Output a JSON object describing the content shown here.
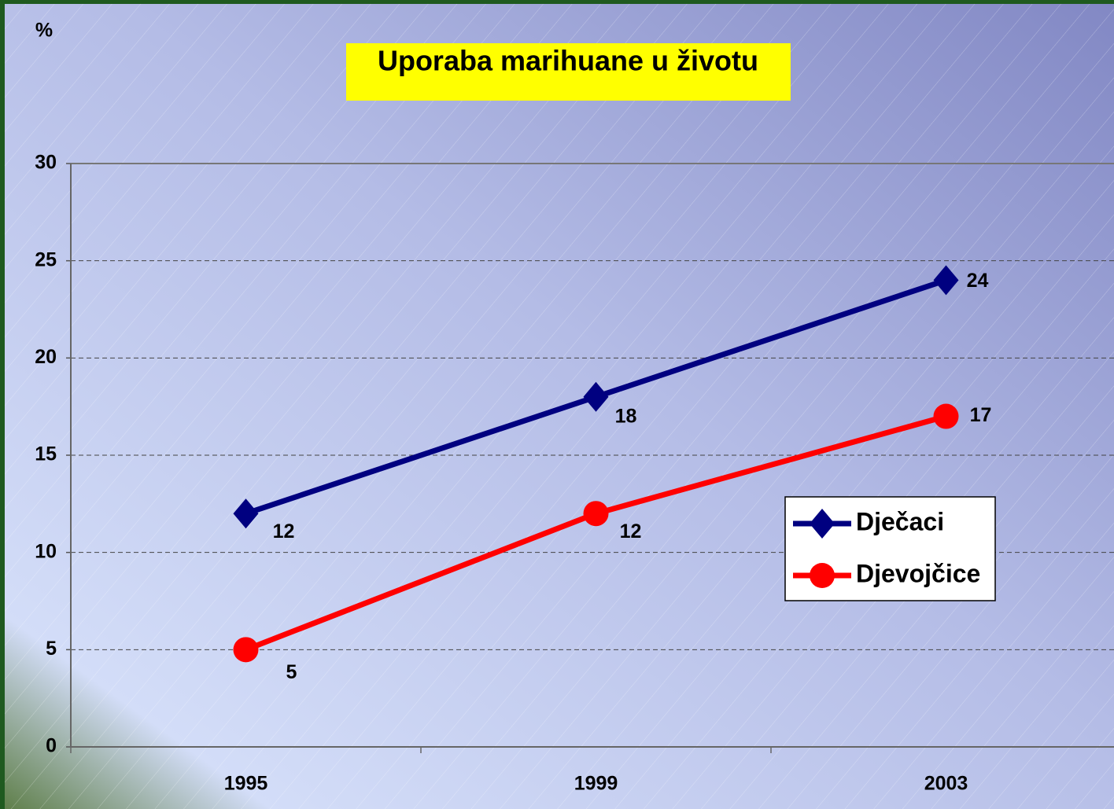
{
  "chart_data": {
    "type": "line",
    "title": "Uporaba marihuane u životu",
    "y_label": "%",
    "categories": [
      "1995",
      "1999",
      "2003"
    ],
    "series": [
      {
        "name": "Dječaci",
        "color": "#000080",
        "marker": "diamond",
        "values": [
          12,
          18,
          24
        ]
      },
      {
        "name": "Djevojčice",
        "color": "#ff0000",
        "marker": "circle",
        "values": [
          5,
          12,
          17
        ]
      }
    ],
    "ylim": [
      0,
      30
    ],
    "yticks": [
      0,
      5,
      10,
      15,
      20,
      25,
      30
    ],
    "grid": true,
    "legend": "right"
  }
}
